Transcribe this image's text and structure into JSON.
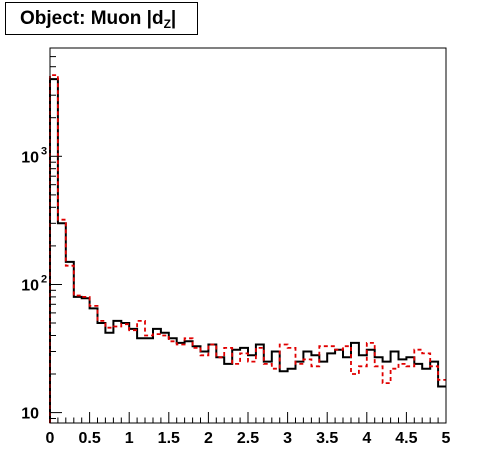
{
  "title": {
    "prefix": "Object: Muon |d",
    "subscript": "Z",
    "suffix": "|"
  },
  "chart_data": {
    "type": "histogram",
    "title": "Object: Muon |d_Z|",
    "xlabel": "",
    "ylabel": "",
    "xlim": [
      0,
      5
    ],
    "ylim": [
      8.3,
      7000
    ],
    "ylog": true,
    "grid": false,
    "legend": "none",
    "bin_width": 0.1,
    "x_ticks": [
      "0",
      "0.5",
      "1",
      "1.5",
      "2",
      "2.5",
      "3",
      "3.5",
      "4",
      "4.5",
      "5"
    ],
    "y_ticks": [
      {
        "base": "10",
        "exp": ""
      },
      {
        "base": "10",
        "exp": "2"
      },
      {
        "base": "10",
        "exp": "3"
      }
    ],
    "series": [
      {
        "color": "#000000",
        "style": "solid",
        "values": [
          4000,
          300,
          150,
          80,
          78,
          65,
          50,
          42,
          52,
          50,
          45,
          38,
          38,
          45,
          42,
          38,
          35,
          36,
          33,
          30,
          34,
          27,
          24,
          31,
          32,
          28,
          34,
          25,
          30,
          21,
          22,
          25,
          30,
          28,
          25,
          29,
          31,
          27,
          35,
          28,
          31,
          27,
          25,
          30,
          26,
          27,
          24,
          22,
          25,
          16
        ]
      },
      {
        "color": "#e00000",
        "style": "dashed",
        "values": [
          4300,
          320,
          140,
          82,
          80,
          68,
          52,
          46,
          47,
          49,
          44,
          52,
          40,
          41,
          40,
          36,
          34,
          38,
          32,
          28,
          34,
          27,
          32,
          24,
          29,
          25,
          32,
          24,
          22,
          34,
          32,
          24,
          26,
          23,
          33,
          33,
          31,
          33,
          20,
          23,
          35,
          23,
          17,
          22,
          24,
          23,
          31,
          29,
          23,
          18
        ]
      }
    ]
  }
}
